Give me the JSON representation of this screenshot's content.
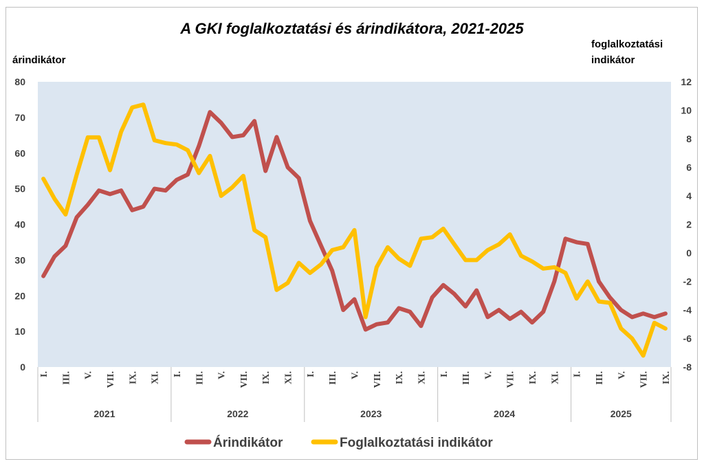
{
  "chart_data": {
    "type": "line",
    "title": "A GKI foglalkoztatási és árindikátora, 2021-2025",
    "y_left_label": "árindikátor",
    "y_right_label_lines": [
      "foglalkoztatási",
      "indikátor"
    ],
    "y_left_ticks": [
      "0",
      "10",
      "20",
      "30",
      "40",
      "50",
      "60",
      "70",
      "80"
    ],
    "y_right_ticks": [
      "-8",
      "-6",
      "-4",
      "-2",
      "0",
      "2",
      "4",
      "6",
      "8",
      "10",
      "12"
    ],
    "ylim_left": [
      0,
      80
    ],
    "ylim_right": [
      -8,
      12
    ],
    "month_labels": [
      "I.",
      "",
      "III.",
      "",
      "V.",
      "",
      "VII.",
      "",
      "IX.",
      "",
      "XI.",
      ""
    ],
    "years": [
      {
        "label": "2021",
        "months": 12
      },
      {
        "label": "2022",
        "months": 12
      },
      {
        "label": "2023",
        "months": 12
      },
      {
        "label": "2024",
        "months": 12
      },
      {
        "label": "2025",
        "months": 9
      }
    ],
    "legend": {
      "position": "bottom"
    },
    "series": [
      {
        "name": "Árindikátor",
        "axis": "left",
        "color": "#c0504d",
        "values": [
          25.5,
          31,
          34,
          42,
          45.5,
          49.5,
          48.5,
          49.5,
          44,
          45,
          50,
          49.5,
          52.5,
          54,
          62,
          71.5,
          68.5,
          64.5,
          65,
          69,
          55,
          64.5,
          56,
          53,
          41,
          34,
          27,
          16,
          19,
          10.5,
          12,
          12.5,
          16.5,
          15.5,
          11.5,
          19.5,
          23,
          20.5,
          17,
          21.5,
          14,
          16,
          13.5,
          15.5,
          12.5,
          15.5,
          24,
          36,
          35,
          34.5,
          24,
          19.5,
          16,
          14,
          15,
          14,
          15
        ]
      },
      {
        "name": "Foglalkoztatási indikátor",
        "axis": "right",
        "color": "#ffc000",
        "values": [
          5.2,
          3.8,
          2.7,
          5.5,
          8.1,
          8.1,
          5.8,
          8.5,
          10.2,
          10.4,
          7.9,
          7.7,
          7.6,
          7.2,
          5.6,
          6.8,
          4.0,
          4.6,
          5.4,
          1.6,
          1.1,
          -2.6,
          -2.1,
          -0.7,
          -1.4,
          -0.8,
          0.2,
          0.4,
          1.6,
          -4.5,
          -1.0,
          0.4,
          -0.4,
          -0.9,
          1.0,
          1.1,
          1.7,
          0.6,
          -0.5,
          -0.5,
          0.2,
          0.6,
          1.3,
          -0.2,
          -0.6,
          -1.1,
          -1.0,
          -1.4,
          -3.2,
          -2.0,
          -3.4,
          -3.5,
          -5.3,
          -6.0,
          -7.2,
          -4.9,
          -5.3
        ]
      }
    ]
  }
}
